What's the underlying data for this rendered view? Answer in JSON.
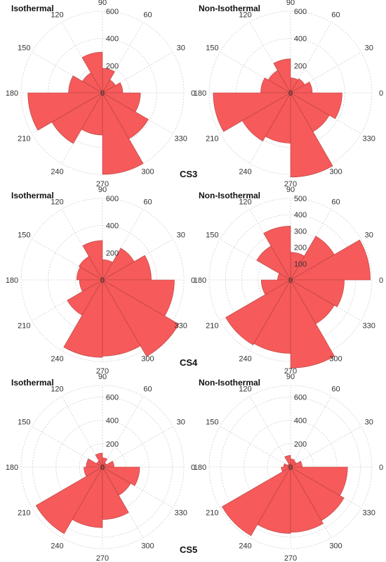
{
  "colors": {
    "petal": "#f65a5a",
    "petal_stroke": "#b34040",
    "grid": "#cfcfcf"
  },
  "angle_labels": [
    "0",
    "30",
    "60",
    "90",
    "120",
    "150",
    "180",
    "210",
    "240",
    "270",
    "300",
    "330"
  ],
  "rows": [
    {
      "label": "CS3"
    },
    {
      "label": "CS4"
    },
    {
      "label": "CS5"
    }
  ],
  "chart_data": [
    {
      "type": "polar-bar",
      "title": "Isothermal",
      "row": "CS3",
      "theta_deg": [
        0,
        30,
        60,
        90,
        120,
        150,
        180,
        210,
        240,
        270,
        300,
        330
      ],
      "values": [
        150,
        110,
        180,
        300,
        170,
        250,
        550,
        430,
        310,
        600,
        390,
        280
      ],
      "rlim": [
        0,
        600
      ],
      "r_ticks": [
        200,
        400,
        600
      ],
      "grid": true
    },
    {
      "type": "polar-bar",
      "title": "Non-Isothermal",
      "row": "CS3",
      "theta_deg": [
        0,
        30,
        60,
        90,
        120,
        150,
        180,
        210,
        240,
        270,
        300,
        330
      ],
      "values": [
        160,
        120,
        110,
        250,
        190,
        220,
        570,
        410,
        370,
        620,
        330,
        380
      ],
      "rlim": [
        0,
        600
      ],
      "r_ticks": [
        200,
        400,
        600
      ],
      "grid": true
    },
    {
      "type": "polar-bar",
      "title": "Isothermal",
      "row": "CS4",
      "theta_deg": [
        0,
        30,
        60,
        90,
        120,
        150,
        180,
        210,
        240,
        270,
        300,
        330
      ],
      "values": [
        360,
        270,
        150,
        290,
        200,
        190,
        170,
        300,
        570,
        560,
        650,
        530
      ],
      "rlim": [
        0,
        600
      ],
      "r_ticks": [
        200,
        400,
        600
      ],
      "grid": true
    },
    {
      "type": "polar-bar",
      "title": "Non-Isothermal",
      "row": "CS4",
      "theta_deg": [
        0,
        30,
        60,
        90,
        120,
        150,
        180,
        210,
        240,
        270,
        300,
        330
      ],
      "values": [
        490,
        310,
        170,
        330,
        240,
        80,
        180,
        460,
        450,
        540,
        310,
        330
      ],
      "rlim": [
        0,
        500
      ],
      "r_ticks": [
        100,
        200,
        300,
        400,
        500
      ],
      "grid": true
    },
    {
      "type": "polar-bar",
      "title": "Isothermal",
      "row": "CS5",
      "theta_deg": [
        0,
        30,
        60,
        90,
        120,
        150,
        180,
        210,
        240,
        270,
        300,
        330
      ],
      "values": [
        100,
        40,
        80,
        120,
        60,
        140,
        160,
        660,
        520,
        450,
        280,
        320
      ],
      "rlim": [
        0,
        700
      ],
      "r_ticks": [
        200,
        400,
        600
      ],
      "grid": true
    },
    {
      "type": "polar-bar",
      "title": "Non-Isothermal",
      "row": "CS5",
      "theta_deg": [
        0,
        30,
        60,
        90,
        120,
        150,
        180,
        210,
        240,
        270,
        300,
        330
      ],
      "values": [
        100,
        60,
        70,
        100,
        30,
        60,
        80,
        680,
        570,
        560,
        530,
        490
      ],
      "rlim": [
        0,
        700
      ],
      "r_ticks": [
        200,
        400,
        600
      ],
      "grid": true
    }
  ]
}
